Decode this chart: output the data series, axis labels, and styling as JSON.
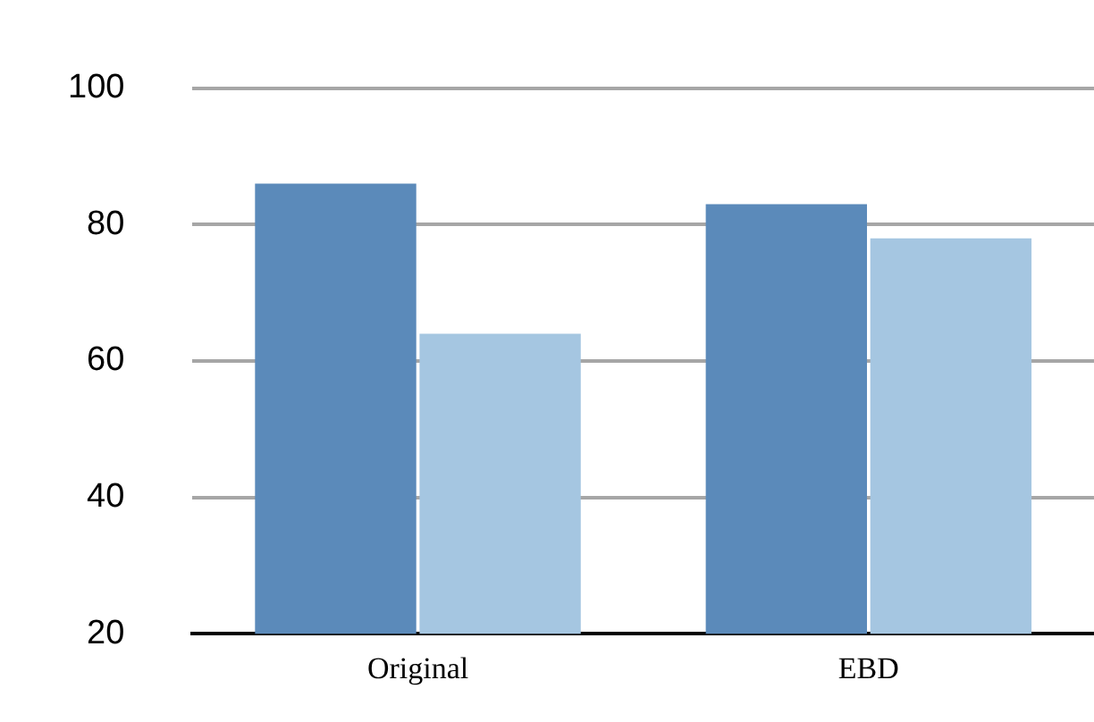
{
  "chart_data": {
    "type": "bar",
    "categories": [
      "Original",
      "EBD"
    ],
    "series": [
      {
        "color": "#5b8aba",
        "values": [
          86,
          83
        ]
      },
      {
        "color": "#a5c6e1",
        "values": [
          64,
          78
        ]
      }
    ],
    "ylim": [
      20,
      100
    ],
    "yticks": [
      20,
      40,
      60,
      80,
      100
    ],
    "grid": "y",
    "legend": false
  }
}
